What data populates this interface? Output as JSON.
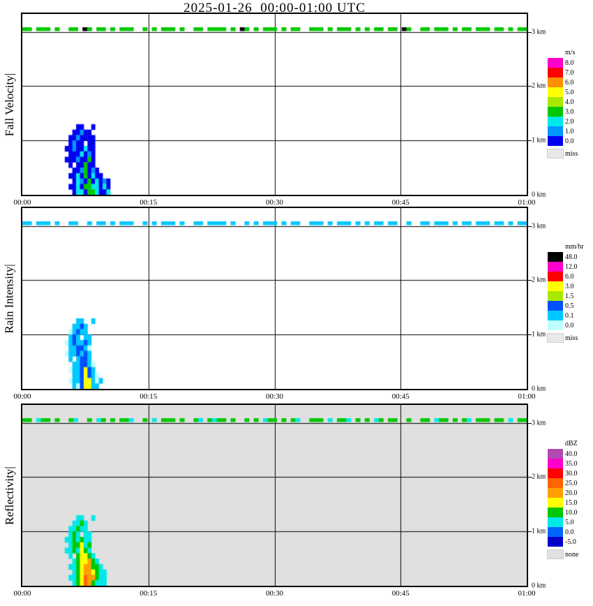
{
  "title": "2025-01-26  00:00-01:00 UTC",
  "chart_data": {
    "type": "heatmap",
    "title": "2025-01-26  00:00-01:00 UTC",
    "description": "Micro rain radar time-height quicklook, three stacked panels sharing time axis 00:00-01:00 UTC and height axis 0-3.33 km. A shallow precipitation echo occurs between about 00:05 and 00:12 below 1.3 km, plus an intermittent noise band at 3 km.",
    "x_axis": {
      "range_minutes": [
        0,
        60
      ],
      "ticks": [
        {
          "label": "00:00",
          "min": 0
        },
        {
          "label": "00:15",
          "min": 15
        },
        {
          "label": "00:30",
          "min": 30
        },
        {
          "label": "00:45",
          "min": 45
        },
        {
          "label": "01:00",
          "min": 60
        }
      ]
    },
    "y_axis": {
      "range_km": [
        0,
        3.33
      ],
      "ticks": [
        {
          "label": "3 km",
          "km": 3
        },
        {
          "label": "2 km",
          "km": 2
        },
        {
          "label": "1 km",
          "km": 1
        },
        {
          "label": "0 km",
          "km": 0
        }
      ]
    },
    "grid": {
      "vertical_minutes": [
        15,
        30,
        45
      ],
      "horizontal_km": [
        1,
        2,
        3
      ]
    },
    "panels": [
      {
        "ylabel": "Fall Velocity|",
        "unit": "m/s",
        "background": "#ffffff",
        "legend": [
          {
            "label": "8.0",
            "color": "#ff00cc"
          },
          {
            "label": "7.0",
            "color": "#ff0000"
          },
          {
            "label": "6.0",
            "color": "#ff9100"
          },
          {
            "label": "5.0",
            "color": "#ffff00"
          },
          {
            "label": "4.0",
            "color": "#a8e800"
          },
          {
            "label": "3.0",
            "color": "#00c800"
          },
          {
            "label": "2.0",
            "color": "#00e8e8"
          },
          {
            "label": "1.0",
            "color": "#0096ff"
          },
          {
            "label": "0.0",
            "color": "#0000f0"
          }
        ],
        "no_data": {
          "label": "miss",
          "color": "#e8e8e8"
        },
        "palette": {
          "b": "#0000f0",
          "s": "#0096ff",
          "c": "#00e8e8",
          "g": "#00c800",
          "k": "#000000"
        },
        "palette_values": {
          "b": "0-1 m/s",
          "s": "1-2 m/s",
          "c": "2-3 m/s",
          "g": "3-4 m/s",
          "k": "spike"
        },
        "noise_band": {
          "altitude_km": 3.05,
          "pattern": "gg.ggg.g..gg.kg.gg.g.ggg..g.g.ggg.g..gg.gggg.g.kg.g.ggg.g.gg..ggg.g.ggg.g.g.gg.gg.kg..gg.ggg.g.gg.ggg.gg.g.gg"
        },
        "echo": {
          "t_start_min": 4.6,
          "t_step_min": 0.45,
          "h_top_km": 1.3,
          "h_step_km": 0.1,
          "rows": [
            "....bb..b.......",
            "...bbsbb........",
            "..bbsbbbb.......",
            "..bsbb.bb.......",
            ".bbsbbcbb.......",
            "..bbbcbsb.......",
            ".bbbsbbgb.......",
            "..b.bbgbb.......",
            "...bbsgbsb......",
            "..bbcbgbcbb.....",
            "...bcsbgbcbsb...",
            "..bbcbggccbcb...",
            "...bccbggcbbc..."
          ]
        }
      },
      {
        "ylabel": "Rain Intensity|",
        "unit": "mm/hr",
        "background": "#ffffff",
        "legend": [
          {
            "label": "48.0",
            "color": "#000000"
          },
          {
            "label": "12.0",
            "color": "#ff00cc"
          },
          {
            "label": "6.0",
            "color": "#ff0000"
          },
          {
            "label": "3.0",
            "color": "#ffff00"
          },
          {
            "label": "1.5",
            "color": "#a8e800"
          },
          {
            "label": "0.5",
            "color": "#0050ff"
          },
          {
            "label": "0.1",
            "color": "#00c8ff"
          },
          {
            "label": "0.0",
            "color": "#c0ffff"
          }
        ],
        "no_data": {
          "label": "miss",
          "color": "#e8e8e8"
        },
        "palette": {
          "p": "#c0ffff",
          "c": "#00c8ff",
          "b": "#0050ff",
          "n": "#a8e800",
          "y": "#ffff00"
        },
        "palette_values": {
          "p": "0-0.1 mm/hr",
          "c": "0.1-0.5 mm/hr",
          "b": "0.5-1.5 mm/hr",
          "n": "1.5-3 mm/hr",
          "y": "3-6 mm/hr"
        },
        "noise_band": {
          "altitude_km": 3.05,
          "pattern": "cc.ccc.c..cc..c.cc.c.ccc..c.c.ccc.c..cc.cccc.c..c.c.ccc.c.cc..ccc.c.ccc.c.c.cc.cc..c..cc.ccc.c.cc.ccc.cc.c.cc"
        },
        "echo": {
          "t_start_min": 4.6,
          "t_step_min": 0.45,
          "h_top_km": 1.3,
          "h_step_km": 0.1,
          "rows": [
            "....cc..c.......",
            "...ccbc.........",
            "..pcbcc.........",
            "..cbc.cc........",
            ".pcbccbc........",
            "..ccbbcp........",
            ".pccbcbc........",
            "..c.cbbc........",
            "...ccbbcp.......",
            "..pccbybc.......",
            "...ccbybcp......",
            "..pccbyycpc.....",
            "...cpbyycc......"
          ]
        }
      },
      {
        "ylabel": "Reflectivity|",
        "unit": "dBZ",
        "background": "#e0e0e0",
        "legend": [
          {
            "label": "40.0",
            "color": "#b04ab0"
          },
          {
            "label": "35.0",
            "color": "#ff00cc"
          },
          {
            "label": "30.0",
            "color": "#ff0000"
          },
          {
            "label": "25.0",
            "color": "#ff6400"
          },
          {
            "label": "20.0",
            "color": "#ffa000"
          },
          {
            "label": "15.0",
            "color": "#ffff00"
          },
          {
            "label": "10.0",
            "color": "#00c800"
          },
          {
            "label": "5.0",
            "color": "#00e8e8"
          },
          {
            "label": "0.0",
            "color": "#0064ff"
          },
          {
            "label": "-5.0",
            "color": "#0000c8"
          }
        ],
        "no_data": {
          "label": "none",
          "color": "#e0e0e0"
        },
        "palette": {
          "c": "#00e8e8",
          "g": "#00c800",
          "y": "#ffff00",
          "o": "#ffa000",
          "r": "#ff6400"
        },
        "palette_values": {
          "c": "5-10 dBZ",
          "g": "10-15 dBZ",
          "y": "15-20 dBZ",
          "o": "20-25 dBZ",
          "r": "25-30 dBZ"
        },
        "noise_band": {
          "altitude_km": 3.05,
          "pattern": "gg.cgg.g..gc..g.cg.g.ggc..g.c.ggg.g..gc.gcgg.g..g.g.cgg.g.gc..ggg.c.ggc.g.g.cg.gg..g..gg.cgg.g.gc.ggg.gg.c.gg"
        },
        "echo": {
          "t_start_min": 4.6,
          "t_step_min": 0.45,
          "h_top_km": 1.3,
          "h_step_km": 0.1,
          "rows": [
            "....cc..c.......",
            "...ccgc.........",
            "..ccgcc.........",
            "..cgc.cc........",
            ".ccgcgcc........",
            "..cggycg........",
            ".ccgcygc........",
            "..c.gyygc.......",
            "...cgyyogc......",
            "..ccgyooggc.....",
            "...cgyooygcc....",
            "..ccgyroogcc....",
            "...cgyrogccc...."
          ]
        }
      }
    ]
  }
}
